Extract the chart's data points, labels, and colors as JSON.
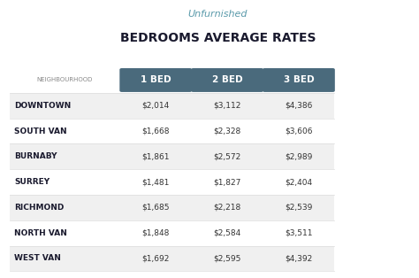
{
  "title_sub": "Unfurnished",
  "title_main": "BEDROOMS AVERAGE RATES",
  "col_header": [
    "1 BED",
    "2 BED",
    "3 BED"
  ],
  "row_header_label": "NEIGHBOURHOOD",
  "neighbourhoods": [
    "DOWNTOWN",
    "SOUTH VAN",
    "BURNABY",
    "SURREY",
    "RICHMOND",
    "NORTH VAN",
    "WEST VAN"
  ],
  "bed1": [
    "$2,014",
    "$1,668",
    "$1,861",
    "$1,481",
    "$1,685",
    "$1,848",
    "$1,692"
  ],
  "bed2": [
    "$3,112",
    "$2,328",
    "$2,572",
    "$1,827",
    "$2,218",
    "$2,584",
    "$2,595"
  ],
  "bed3": [
    "$4,386",
    "$3,606",
    "$2,989",
    "$2,404",
    "$2,539",
    "$3,511",
    "$4,392"
  ],
  "header_bg_color": "#4a6a7c",
  "header_text_color": "#ffffff",
  "row_bg_even": "#f0f0f0",
  "row_bg_odd": "#ffffff",
  "neighbourhood_text_color": "#1a1a2e",
  "value_text_color": "#333333",
  "title_sub_color": "#5a9aaa",
  "title_main_color": "#1a1a2e",
  "border_color": "#c8a96e",
  "bg_color": "#ffffff"
}
